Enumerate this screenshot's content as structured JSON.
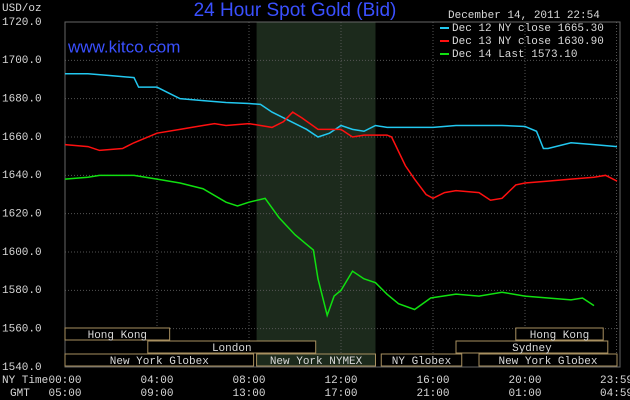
{
  "chart_data": {
    "type": "line",
    "title": "24 Hour Spot Gold (Bid)",
    "source": "www.kitco.com",
    "timestamp": "December 14, 2011 22:54",
    "ylabel": "USD/oz",
    "x_row_labels": [
      "NY Time",
      "GMT"
    ],
    "xlim": [
      0,
      24
    ],
    "ylim": [
      1540,
      1720
    ],
    "yticks": [
      {
        "value": 1540,
        "label": "1540.0"
      },
      {
        "value": 1560,
        "label": "1560.0"
      },
      {
        "value": 1580,
        "label": "1580.0"
      },
      {
        "value": 1600,
        "label": "1600.0"
      },
      {
        "value": 1620,
        "label": "1620.0"
      },
      {
        "value": 1640,
        "label": "1640.0"
      },
      {
        "value": 1660,
        "label": "1660.0"
      },
      {
        "value": 1680,
        "label": "1680.0"
      },
      {
        "value": 1700,
        "label": "1700.0"
      },
      {
        "value": 1720,
        "label": "1720.0"
      }
    ],
    "xticks": [
      {
        "value": 0,
        "label": "00:00"
      },
      {
        "value": 4,
        "label": "04:00"
      },
      {
        "value": 8,
        "label": "08:00"
      },
      {
        "value": 12,
        "label": "12:00"
      },
      {
        "value": 16,
        "label": "16:00"
      },
      {
        "value": 20,
        "label": "20:00"
      },
      {
        "value": 23.98,
        "label": "23:59"
      }
    ],
    "xticks_gmt": [
      "05:00",
      "09:00",
      "13:00",
      "17:00",
      "21:00",
      "01:00",
      "04:59"
    ],
    "grid": true,
    "series": [
      {
        "name": "Dec 12 NY close 1665.30",
        "color": "#22c8f0",
        "x": [
          0,
          1,
          2,
          3,
          3.2,
          4,
          4.5,
          5,
          6,
          7,
          8,
          8.5,
          9,
          9.5,
          10,
          10.5,
          11,
          11.5,
          12,
          12.5,
          13,
          13.5,
          14,
          15,
          16,
          17,
          18,
          19,
          20,
          20.5,
          20.8,
          21,
          22,
          23,
          24
        ],
        "values": [
          1693,
          1693,
          1692,
          1691,
          1686,
          1686,
          1683,
          1680,
          1679,
          1678,
          1677.5,
          1677,
          1673,
          1670,
          1667,
          1664,
          1660,
          1662,
          1666,
          1664,
          1663,
          1666,
          1665,
          1665,
          1665,
          1666,
          1666,
          1666,
          1665.5,
          1663,
          1654,
          1654,
          1657,
          1656,
          1655
        ]
      },
      {
        "name": "Dec 13 NY close 1630.90",
        "color": "#ff1010",
        "x": [
          0,
          1,
          1.5,
          2.5,
          3,
          4,
          5,
          6,
          6.5,
          7,
          8,
          8.5,
          9,
          9.5,
          9.9,
          10.3,
          11,
          12,
          12.5,
          13,
          14,
          14.2,
          14.8,
          15.2,
          15.7,
          16,
          16.5,
          17,
          18,
          18.5,
          19,
          19.6,
          20,
          21,
          22,
          23,
          23.5,
          24
        ],
        "values": [
          1656,
          1655,
          1653,
          1654,
          1657,
          1662,
          1664,
          1666,
          1667,
          1666,
          1667,
          1666,
          1665,
          1668,
          1673,
          1670,
          1664,
          1664,
          1660,
          1661,
          1661,
          1660,
          1645,
          1638,
          1630,
          1628,
          1631,
          1632,
          1631,
          1627,
          1628,
          1635,
          1636,
          1637,
          1638,
          1639,
          1640,
          1637
        ]
      },
      {
        "name": "Dec 14 Last 1573.10",
        "color": "#10e010",
        "x": [
          0,
          1,
          1.5,
          3,
          4,
          5,
          6,
          7,
          7.5,
          8,
          8.7,
          9.3,
          10,
          10.5,
          10.8,
          11,
          11.4,
          11.7,
          12,
          12.5,
          13,
          13.5,
          14,
          14.5,
          15.2,
          15.9,
          17,
          18,
          19,
          20,
          21,
          22,
          22.5,
          23
        ],
        "values": [
          1638,
          1639,
          1640,
          1640,
          1638,
          1636,
          1633,
          1626,
          1624,
          1626,
          1628,
          1618,
          1609,
          1604,
          1601,
          1586,
          1567,
          1577,
          1580,
          1590,
          1586,
          1584,
          1578,
          1573,
          1570,
          1576,
          1578,
          1577,
          1579,
          1577,
          1576,
          1575,
          1576,
          1572
        ]
      }
    ],
    "sessions": [
      {
        "label": "Hong Kong",
        "start": 0,
        "end": 4.55,
        "row": 0
      },
      {
        "label": "Hong Kong",
        "start": 19.6,
        "end": 23.4,
        "row": 0
      },
      {
        "label": "London",
        "start": 3.6,
        "end": 10.9,
        "row": 1
      },
      {
        "label": "Sydney",
        "start": 17,
        "end": 23.6,
        "row": 1
      },
      {
        "label": "New York Globex",
        "start": 0,
        "end": 8.2,
        "row": 2
      },
      {
        "label": "New York NYMEX",
        "start": 8.33,
        "end": 13.5,
        "row": 2,
        "shaded": true
      },
      {
        "label": "NY Globex",
        "start": 13.75,
        "end": 17.25,
        "row": 2
      },
      {
        "label": "New York Globex",
        "start": 18,
        "end": 24,
        "row": 2
      }
    ]
  }
}
